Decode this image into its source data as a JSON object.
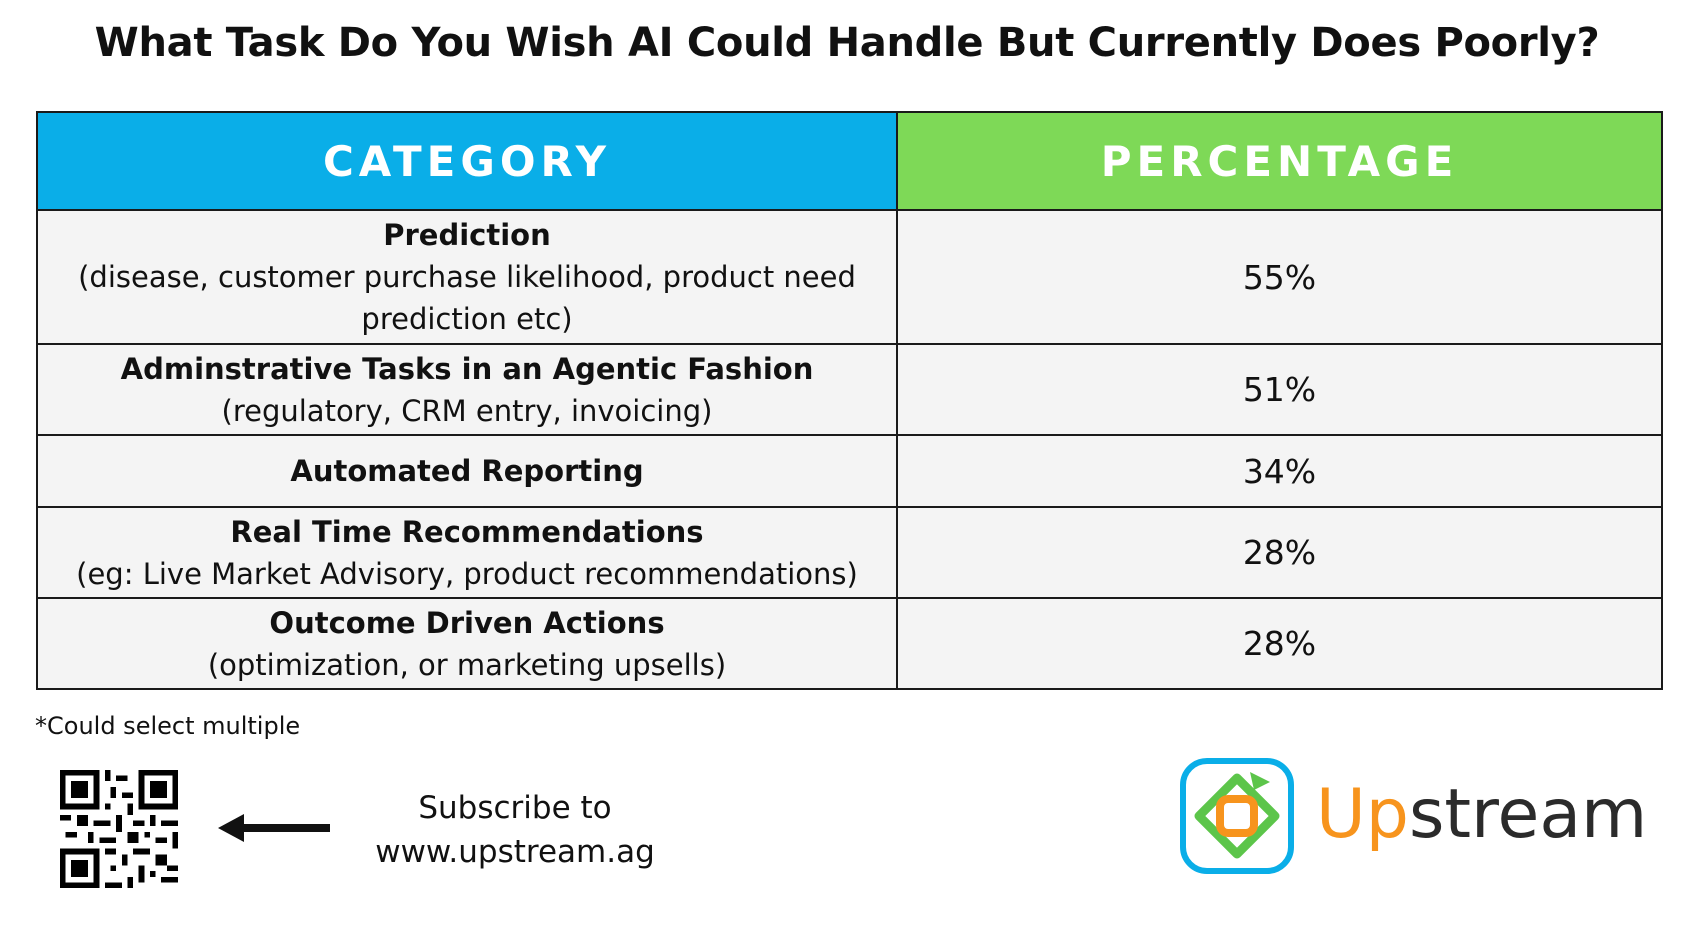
{
  "title": "What Task Do You Wish AI Could Handle But Currently Does Poorly?",
  "chart_data": {
    "type": "table",
    "title": "What Task Do You Wish AI Could Handle But Currently Does Poorly?",
    "columns": [
      "CATEGORY",
      "PERCENTAGE"
    ],
    "rows": [
      {
        "category": "Prediction",
        "description": "(disease, customer purchase likelihood, product need prediction etc)",
        "percentage": "55%",
        "value": 55
      },
      {
        "category": "Adminstrative Tasks in an Agentic Fashion",
        "description": "(regulatory, CRM entry, invoicing)",
        "percentage": "51%",
        "value": 51
      },
      {
        "category": "Automated Reporting",
        "description": "",
        "percentage": "34%",
        "value": 34
      },
      {
        "category": "Real Time Recommendations",
        "description": "(eg: Live Market Advisory, product recommendations)",
        "percentage": "28%",
        "value": 28
      },
      {
        "category": "Outcome Driven Actions",
        "description": "(optimization, or marketing upsells)",
        "percentage": "28%",
        "value": 28
      }
    ],
    "header_colors": {
      "category": "#0aaee8",
      "percentage": "#7ed957"
    },
    "footnote": "*Could select multiple"
  },
  "footer": {
    "qr_icon": "qr-code-icon",
    "arrow_icon": "arrow-left-icon",
    "subscribe_line1": "Subscribe to",
    "subscribe_line2": "www.upstream.ag",
    "logo_icon": "upstream-logo-icon",
    "logo_text_part1": "Up",
    "logo_text_part2": "stream",
    "logo_color_orange": "#f7941d",
    "logo_color_dark": "#2b2b2b"
  }
}
